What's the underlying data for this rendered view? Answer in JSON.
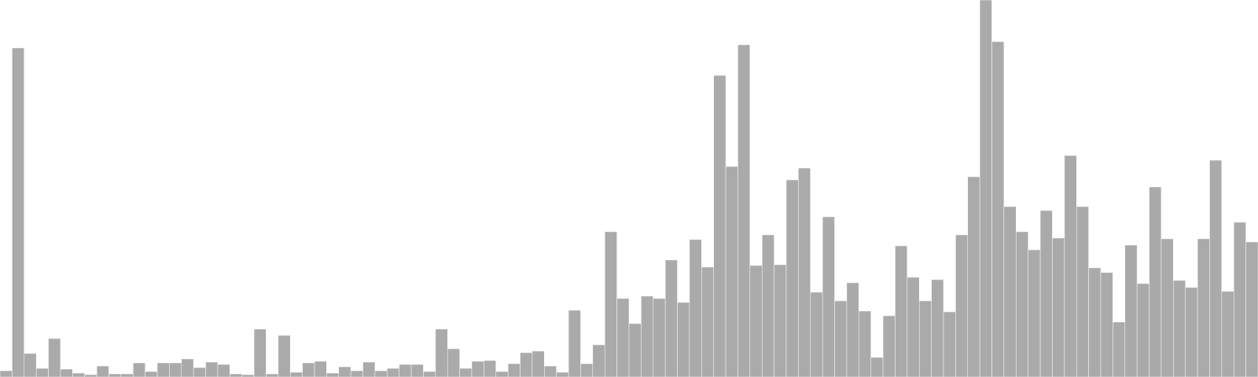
{
  "chart_data": {
    "type": "bar",
    "title": "",
    "xlabel": "",
    "ylabel": "",
    "grid": false,
    "legend": "none",
    "bar_color": "#aaaaaa",
    "bar_edge_color": "#ffffff",
    "background": "#ffffff",
    "ylim": [
      0,
      480
    ],
    "values": [
      8,
      419,
      30,
      11,
      49,
      10,
      5,
      3,
      14,
      4,
      4,
      18,
      7,
      18,
      18,
      23,
      12,
      19,
      16,
      4,
      3,
      61,
      4,
      53,
      6,
      18,
      20,
      5,
      13,
      8,
      19,
      8,
      11,
      16,
      16,
      7,
      61,
      36,
      11,
      20,
      21,
      7,
      17,
      31,
      33,
      14,
      6,
      85,
      17,
      41,
      185,
      100,
      68,
      103,
      100,
      149,
      95,
      175,
      140,
      384,
      268,
      423,
      142,
      181,
      143,
      251,
      266,
      108,
      204,
      97,
      120,
      84,
      25,
      78,
      167,
      127,
      97,
      124,
      83,
      181,
      255,
      480,
      427,
      217,
      185,
      162,
      212,
      177,
      282,
      217,
      139,
      133,
      70,
      168,
      119,
      242,
      176,
      123,
      114,
      176,
      276,
      109,
      197,
      172
    ]
  }
}
